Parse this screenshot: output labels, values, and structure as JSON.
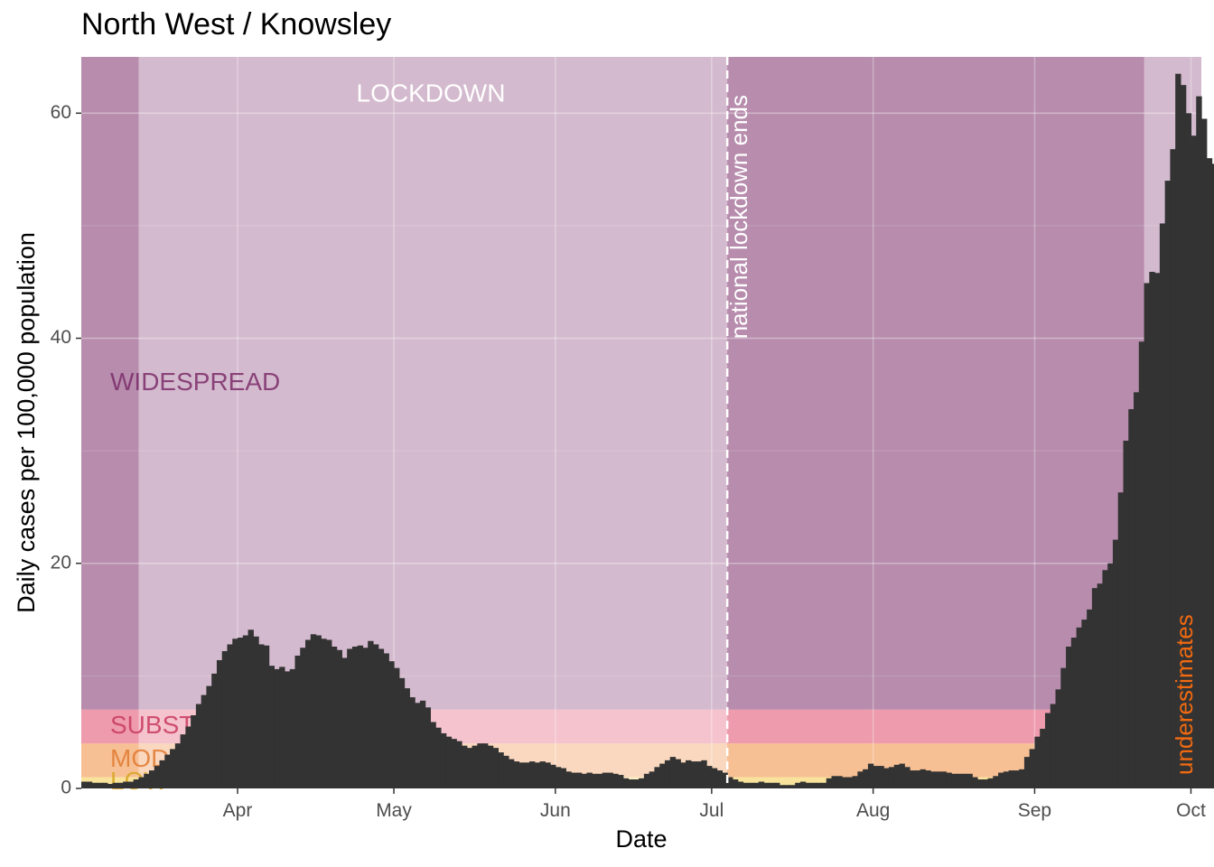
{
  "chart_data": {
    "type": "bar",
    "title": "North West / Knowsley",
    "xlabel": "Date",
    "ylabel": "Daily cases per 100,000 population",
    "x_start": "2020-03-02",
    "x_end": "2020-10-03",
    "ylim": [
      0,
      65
    ],
    "y_ticks": [
      0,
      20,
      40,
      60
    ],
    "x_ticks": [
      {
        "label": "Apr",
        "date": "2020-04-01"
      },
      {
        "label": "May",
        "date": "2020-05-01"
      },
      {
        "label": "Jun",
        "date": "2020-06-01"
      },
      {
        "label": "Jul",
        "date": "2020-07-01"
      },
      {
        "label": "Aug",
        "date": "2020-08-01"
      },
      {
        "label": "Sep",
        "date": "2020-09-01"
      },
      {
        "label": "Oct",
        "date": "2020-10-01"
      }
    ],
    "grid": true,
    "bands": [
      {
        "label": "WIDESPREAD",
        "ymin": 7,
        "ymax": 65,
        "color": "#7b2d6a"
      },
      {
        "label": "SUBSTANTIAL",
        "ymin": 4,
        "ymax": 7,
        "color": "#e0486a"
      },
      {
        "label": "MODERATE",
        "ymin": 1,
        "ymax": 4,
        "color": "#f08a3c"
      },
      {
        "label": "LOW",
        "ymin": 0,
        "ymax": 1,
        "color": "#f4cc4a"
      }
    ],
    "lockdown_periods": [
      {
        "label": "LOCKDOWN",
        "start": "2020-03-13",
        "end": "2020-07-04"
      },
      {
        "label": "",
        "start": "2020-09-22",
        "end": "2020-10-03"
      }
    ],
    "lockdown_end": {
      "date": "2020-07-04",
      "label": "national lockdown ends"
    },
    "annotation": {
      "text": "underestimates",
      "color": "#f26a10"
    },
    "bar_color": "#333333",
    "series": [
      {
        "values": [
          0.6,
          0.6,
          0.5,
          0.5,
          0.5,
          0.4,
          0.5,
          0.5,
          0.6,
          0.6,
          0.8,
          1.0,
          1.3,
          1.6,
          2.0,
          2.5,
          3.0,
          3.5,
          4.0,
          4.8,
          5.5,
          6.5,
          7.5,
          8.3,
          9.1,
          10.2,
          11.4,
          12.2,
          12.8,
          13.3,
          13.4,
          13.6,
          14.1,
          13.5,
          12.8,
          12.7,
          10.9,
          10.6,
          10.8,
          10.4,
          10.6,
          11.8,
          12.5,
          13.2,
          13.7,
          13.6,
          13.3,
          13.2,
          12.6,
          12.3,
          11.6,
          12.4,
          12.6,
          12.7,
          12.5,
          13.1,
          12.8,
          12.4,
          12.0,
          11.3,
          10.7,
          9.8,
          8.9,
          8.1,
          7.6,
          7.8,
          7.2,
          5.9,
          5.4,
          4.9,
          4.6,
          4.4,
          4.2,
          3.8,
          3.6,
          3.8,
          4.0,
          4.0,
          3.8,
          3.6,
          3.2,
          2.9,
          2.6,
          2.4,
          2.3,
          2.3,
          2.4,
          2.3,
          2.4,
          2.3,
          2.1,
          1.9,
          1.8,
          1.5,
          1.4,
          1.4,
          1.3,
          1.4,
          1.3,
          1.3,
          1.4,
          1.4,
          1.3,
          1.2,
          0.9,
          0.8,
          0.8,
          0.9,
          1.3,
          1.5,
          1.9,
          2.2,
          2.5,
          2.8,
          2.6,
          2.3,
          2.5,
          2.4,
          2.4,
          2.5,
          2.0,
          1.8,
          1.6,
          1.4,
          1.0,
          0.8,
          0.6,
          0.5,
          0.5,
          0.5,
          0.6,
          0.5,
          0.5,
          0.5,
          0.3,
          0.3,
          0.3,
          0.5,
          0.6,
          0.5,
          0.5,
          0.5,
          0.5,
          0.9,
          1.1,
          1.1,
          1.0,
          1.0,
          1.1,
          1.5,
          1.7,
          2.2,
          2.0,
          2.0,
          1.8,
          1.9,
          2.1,
          2.2,
          1.9,
          1.6,
          1.6,
          1.7,
          1.6,
          1.5,
          1.5,
          1.5,
          1.4,
          1.3,
          1.3,
          1.3,
          1.3,
          1.0,
          0.8,
          0.8,
          0.9,
          1.1,
          1.4,
          1.5,
          1.6,
          1.6,
          1.7,
          2.8,
          3.5,
          4.6,
          5.3,
          6.7,
          7.5,
          8.8,
          10.7,
          12.6,
          13.4,
          14.3,
          15.0,
          15.9,
          17.8,
          18.2,
          19.4,
          20.0,
          22.1,
          26.3,
          30.9,
          33.7,
          35.2,
          39.7,
          44.9,
          45.9,
          45.8,
          50.2,
          54.0,
          56.8,
          63.5,
          62.5,
          60.0,
          58.0,
          61.5,
          59.5,
          56.0,
          55.5,
          55.0
        ]
      }
    ]
  }
}
